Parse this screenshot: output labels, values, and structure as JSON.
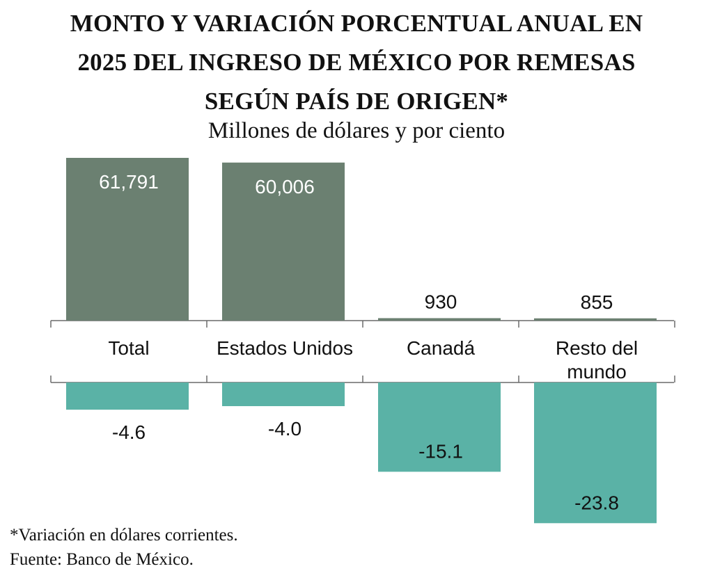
{
  "header": {
    "title_lines": [
      "MONTO Y VARIACIÓN PORCENTUAL ANUAL EN",
      "2025 DEL INGRESO DE MÉXICO POR REMESAS",
      "SEGÚN PAÍS DE ORIGEN*"
    ],
    "subtitle": "Millones de dólares y por ciento"
  },
  "chart_data": {
    "type": "bar",
    "categories": [
      [
        "Total"
      ],
      [
        "Estados Unidos"
      ],
      [
        "Canadá"
      ],
      [
        "Resto del",
        "mundo"
      ]
    ],
    "series": [
      {
        "values": [
          61791,
          60006,
          930,
          855
        ],
        "value_labels": [
          "61,791",
          "60,006",
          "930",
          "855"
        ],
        "color": "#6b8071"
      },
      {
        "values": [
          -4.6,
          -4.0,
          -15.1,
          -23.8
        ],
        "value_labels": [
          "-4.6",
          "-4.0",
          "-15.1",
          "-23.8"
        ],
        "color": "#5ab2a6"
      }
    ],
    "xlabel": "",
    "ylabel": "",
    "grid": false,
    "legend": "none"
  },
  "footer": {
    "footnote": "*Variación en dólares corrientes.",
    "source": "Fuente: Banco de México."
  }
}
